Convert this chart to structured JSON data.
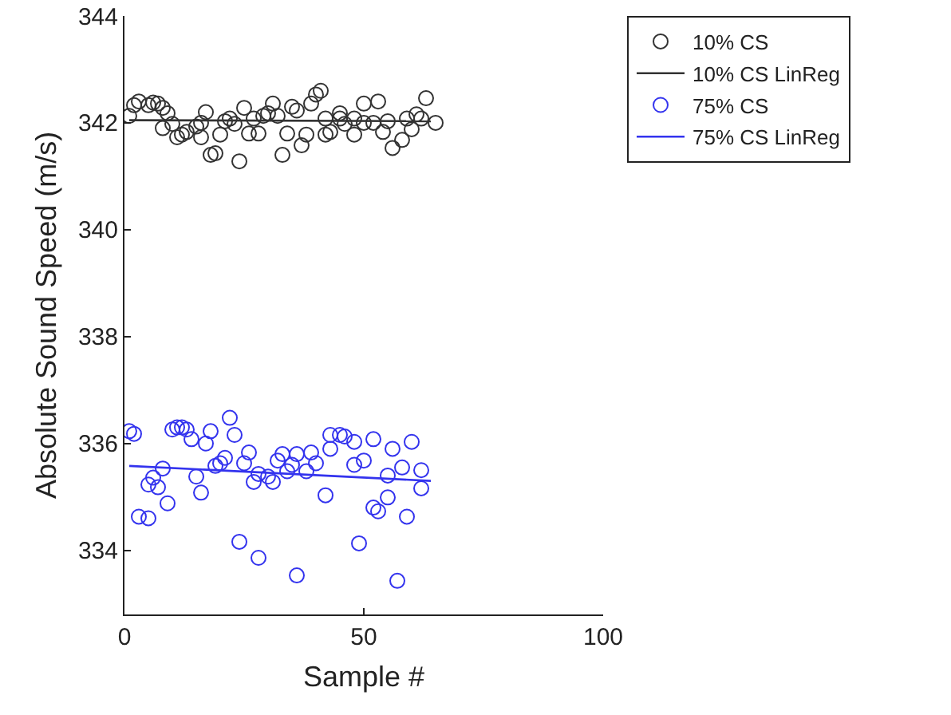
{
  "chart_data": {
    "type": "scatter",
    "xlabel": "Sample #",
    "ylabel": "Absolute Sound Speed (m/s)",
    "xlim": [
      0,
      100
    ],
    "xticks": [
      0,
      50,
      100
    ],
    "ylim": [
      332.8,
      344
    ],
    "yticks": [
      334,
      336,
      338,
      340,
      342,
      344
    ],
    "grid": false,
    "legend": "top right",
    "series": [
      {
        "name": "10% CS",
        "marker": "circle",
        "color": "#333333",
        "x": [
          1,
          2,
          3,
          5,
          6,
          7,
          8,
          8,
          9,
          10,
          11,
          12,
          13,
          15,
          16,
          16,
          17,
          18,
          19,
          20,
          21,
          22,
          23,
          24,
          25,
          26,
          27,
          28,
          29,
          30,
          31,
          32,
          33,
          34,
          35,
          36,
          37,
          38,
          39,
          40,
          41,
          42,
          42,
          43,
          45,
          45,
          46,
          48,
          48,
          50,
          50,
          52,
          53,
          54,
          55,
          56,
          58,
          59,
          60,
          61,
          62,
          63,
          65
        ],
        "values": [
          342.13,
          342.33,
          342.4,
          342.33,
          342.38,
          342.36,
          342.28,
          341.9,
          342.18,
          341.98,
          341.73,
          341.78,
          341.83,
          341.93,
          342.0,
          341.73,
          342.2,
          341.4,
          341.43,
          341.78,
          342.03,
          342.08,
          341.98,
          341.28,
          342.28,
          341.8,
          342.08,
          341.8,
          342.13,
          342.18,
          342.36,
          342.13,
          341.4,
          341.8,
          342.3,
          342.23,
          341.58,
          341.78,
          342.36,
          342.53,
          342.6,
          341.78,
          342.08,
          341.83,
          342.18,
          342.08,
          341.98,
          341.78,
          342.08,
          342.0,
          342.36,
          342.0,
          342.4,
          341.83,
          342.03,
          341.53,
          341.68,
          342.08,
          341.88,
          342.16,
          342.08,
          342.46,
          342.0
        ]
      },
      {
        "name": "10% CS LinReg",
        "type": "line",
        "marker": "none",
        "line_style": "solid",
        "color": "#333333",
        "x": [
          1,
          64
        ],
        "values": [
          342.05,
          342.03
        ]
      },
      {
        "name": "75% CS",
        "marker": "circle",
        "color": "#3333ee",
        "x": [
          1,
          2,
          3,
          5,
          5,
          6,
          7,
          8,
          9,
          10,
          11,
          12,
          13,
          14,
          15,
          16,
          17,
          18,
          19,
          20,
          21,
          22,
          23,
          24,
          25,
          26,
          27,
          28,
          28,
          30,
          31,
          32,
          33,
          34,
          35,
          36,
          36,
          38,
          39,
          40,
          42,
          43,
          43,
          45,
          46,
          48,
          48,
          49,
          50,
          52,
          52,
          53,
          55,
          55,
          56,
          57,
          58,
          59,
          60,
          62,
          62
        ],
        "values": [
          336.23,
          336.18,
          334.63,
          334.6,
          335.23,
          335.36,
          335.18,
          335.53,
          334.88,
          336.26,
          336.3,
          336.3,
          336.26,
          336.08,
          335.38,
          335.08,
          336.0,
          336.23,
          335.58,
          335.63,
          335.73,
          336.48,
          336.16,
          334.16,
          335.63,
          335.83,
          335.28,
          333.86,
          335.43,
          335.38,
          335.28,
          335.68,
          335.8,
          335.48,
          335.6,
          333.53,
          335.8,
          335.48,
          335.83,
          335.63,
          335.03,
          335.9,
          336.16,
          336.16,
          336.13,
          336.03,
          335.6,
          334.13,
          335.68,
          336.08,
          334.8,
          334.73,
          335.4,
          334.99,
          335.9,
          333.43,
          335.55,
          334.63,
          336.03,
          335.5,
          335.16
        ]
      },
      {
        "name": "75% CS LinReg",
        "type": "line",
        "marker": "none",
        "line_style": "solid",
        "color": "#3333ee",
        "x": [
          1,
          64
        ],
        "values": [
          335.58,
          335.3
        ]
      }
    ]
  }
}
